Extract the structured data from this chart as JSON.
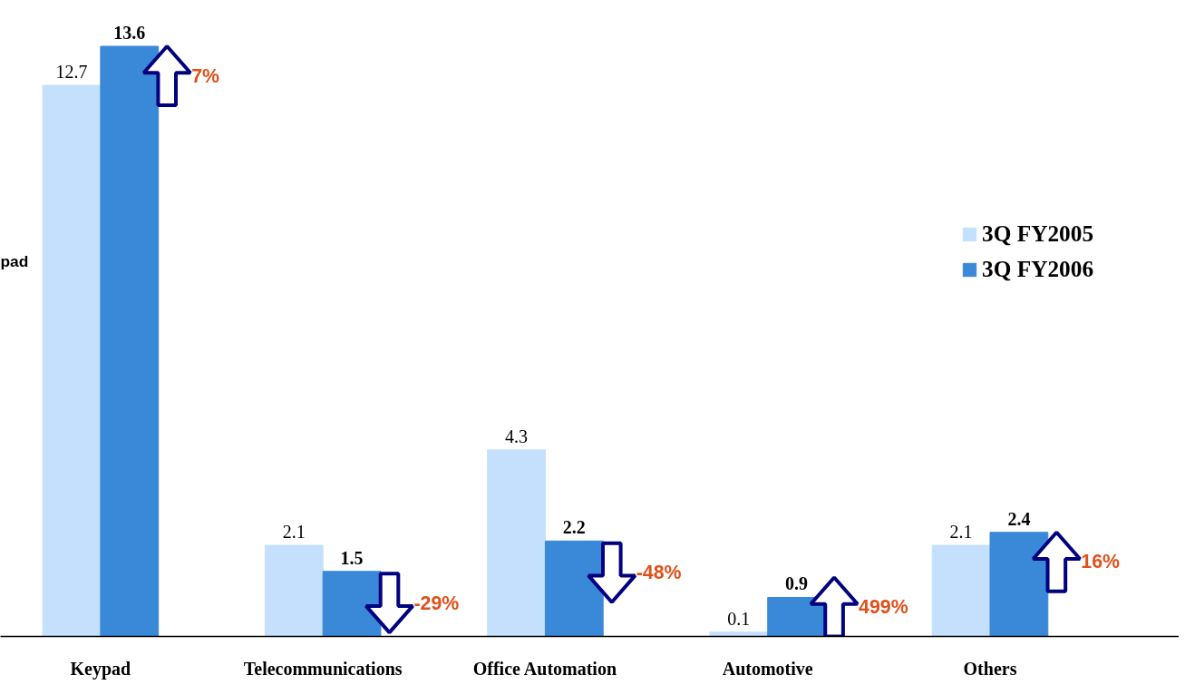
{
  "chart_data": {
    "type": "bar",
    "categories": [
      "Keypad",
      "Telecommunications",
      "Office Automation",
      "Automotive",
      "Others"
    ],
    "series": [
      {
        "name": "3Q FY2005",
        "color": "#c5e0fc",
        "values": [
          12.7,
          2.1,
          4.3,
          0.1,
          2.1
        ]
      },
      {
        "name": "3Q FY2006",
        "color": "#3a88d8",
        "values": [
          13.6,
          1.5,
          2.2,
          0.9,
          2.4
        ]
      }
    ],
    "data_labels": true,
    "legend": "right",
    "grid": false,
    "annotations": [
      "7%",
      "-29%",
      "-48%",
      "499%",
      "16%",
      "pad"
    ]
  }
}
